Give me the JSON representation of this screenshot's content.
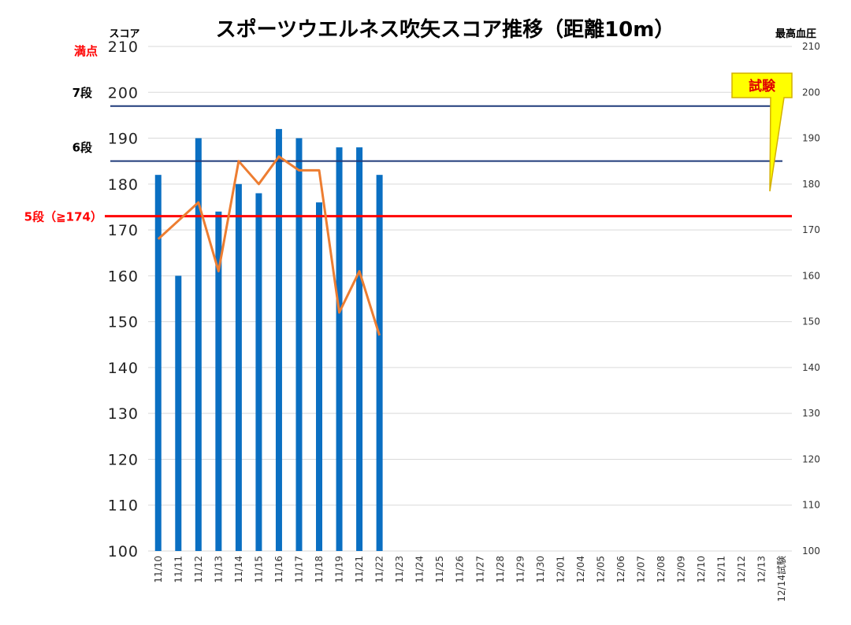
{
  "chart_data": {
    "type": "bar",
    "title": "スポーツウエルネス吹矢スコア推移（距離10m）",
    "ylabel": "スコア",
    "y2label": "最高血圧",
    "ylim": [
      100,
      210
    ],
    "y2lim": [
      100,
      210
    ],
    "yticks": [
      100,
      110,
      120,
      130,
      140,
      150,
      160,
      170,
      180,
      190,
      200,
      210
    ],
    "categories": [
      "11/10",
      "11/11",
      "11/12",
      "11/13",
      "11/14",
      "11/15",
      "11/16",
      "11/17",
      "11/18",
      "11/19",
      "11/21",
      "11/22",
      "11/23",
      "11/24",
      "11/25",
      "11/26",
      "11/27",
      "11/28",
      "11/29",
      "11/30",
      "12/01",
      "12/04",
      "12/05",
      "12/06",
      "12/07",
      "12/08",
      "12/09",
      "12/10",
      "12/11",
      "12/12",
      "12/13",
      "12/14試験"
    ],
    "series": [
      {
        "kind": "bar",
        "color": "#0a6fc2",
        "values": [
          182,
          160,
          190,
          174,
          180,
          178,
          192,
          190,
          176,
          188,
          188,
          182,
          null,
          null,
          null,
          null,
          null,
          null,
          null,
          null,
          null,
          null,
          null,
          null,
          null,
          null,
          null,
          null,
          null,
          null,
          null,
          null
        ]
      },
      {
        "kind": "line",
        "axis": "right",
        "color": "#ed7d31",
        "values": [
          168,
          172,
          176,
          161,
          185,
          180,
          186,
          183,
          183,
          152,
          161,
          147,
          null,
          null,
          null,
          null,
          null,
          null,
          null,
          null,
          null,
          null,
          null,
          null,
          null,
          null,
          null,
          null,
          null,
          null,
          null,
          null
        ]
      }
    ],
    "reference_lines": [
      {
        "label": "満点",
        "value": 210,
        "color": "#ff0000"
      },
      {
        "label": "7段",
        "value": 197,
        "color": "#1f3a7a"
      },
      {
        "label": "6段",
        "value": 185,
        "color": "#1f3a7a"
      },
      {
        "label": "5段（≧174）",
        "value": 173,
        "color": "#ff0000"
      }
    ],
    "callout": {
      "text": "試験",
      "fill": "#ffff00",
      "border": "#d4b000",
      "text_color": "#e00000"
    },
    "grid": true
  }
}
